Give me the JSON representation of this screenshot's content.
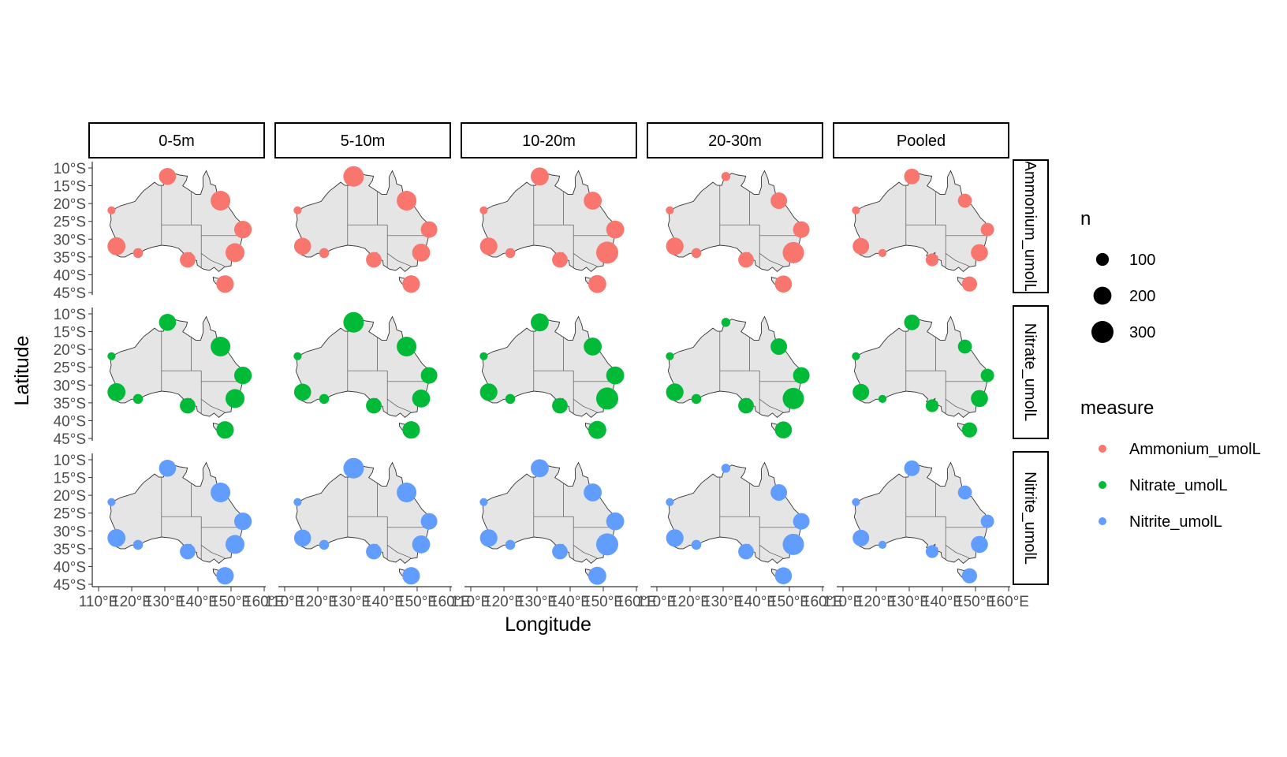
{
  "chart_data": {
    "type": "scatter",
    "title": "",
    "xlabel": "Longitude",
    "ylabel": "Latitude",
    "xlim": [
      110,
      160
    ],
    "ylim": [
      -45,
      -10
    ],
    "x_ticks": [
      "110°E",
      "120°E",
      "130°E",
      "140°E",
      "150°E",
      "160°E"
    ],
    "y_ticks": [
      "10°S",
      "15°S",
      "20°S",
      "25°S",
      "30°S",
      "35°S",
      "40°S",
      "45°S"
    ],
    "depth_facets": [
      "0-5m",
      "5-10m",
      "10-20m",
      "20-30m",
      "Pooled"
    ],
    "measure_facets": [
      "Ammonium_umolL",
      "Nitrate_umolL",
      "Nitrite_umolL"
    ],
    "stations": [
      {
        "lon": 130.8,
        "lat": -12.4
      },
      {
        "lon": 146.8,
        "lat": -19.2
      },
      {
        "lon": 153.6,
        "lat": -27.3
      },
      {
        "lon": 151.2,
        "lat": -33.8
      },
      {
        "lon": 148.2,
        "lat": -42.6
      },
      {
        "lon": 136.9,
        "lat": -35.8
      },
      {
        "lon": 115.4,
        "lat": -32.0
      },
      {
        "lon": 113.9,
        "lat": -21.9
      },
      {
        "lon": 121.9,
        "lat": -33.9
      }
    ],
    "sample_counts": {
      "0-5m": [
        180,
        240,
        190,
        220,
        190,
        150,
        200,
        40,
        60
      ],
      "5-10m": [
        260,
        240,
        170,
        200,
        190,
        150,
        180,
        40,
        60
      ],
      "10-20m": [
        200,
        200,
        200,
        300,
        200,
        150,
        190,
        40,
        60
      ],
      "20-30m": [
        50,
        170,
        170,
        280,
        180,
        150,
        190,
        40,
        60
      ],
      "Pooled": [
        150,
        120,
        110,
        180,
        140,
        100,
        170,
        40,
        40
      ]
    },
    "size_legend": {
      "title": "n",
      "values": [
        100,
        200,
        300
      ]
    },
    "color_legend": {
      "title": "measure",
      "entries": [
        {
          "name": "Ammonium_umolL",
          "color": "#F8766D"
        },
        {
          "name": "Nitrate_umolL",
          "color": "#00BA38"
        },
        {
          "name": "Nitrite_umolL",
          "color": "#619CFF"
        }
      ]
    }
  }
}
